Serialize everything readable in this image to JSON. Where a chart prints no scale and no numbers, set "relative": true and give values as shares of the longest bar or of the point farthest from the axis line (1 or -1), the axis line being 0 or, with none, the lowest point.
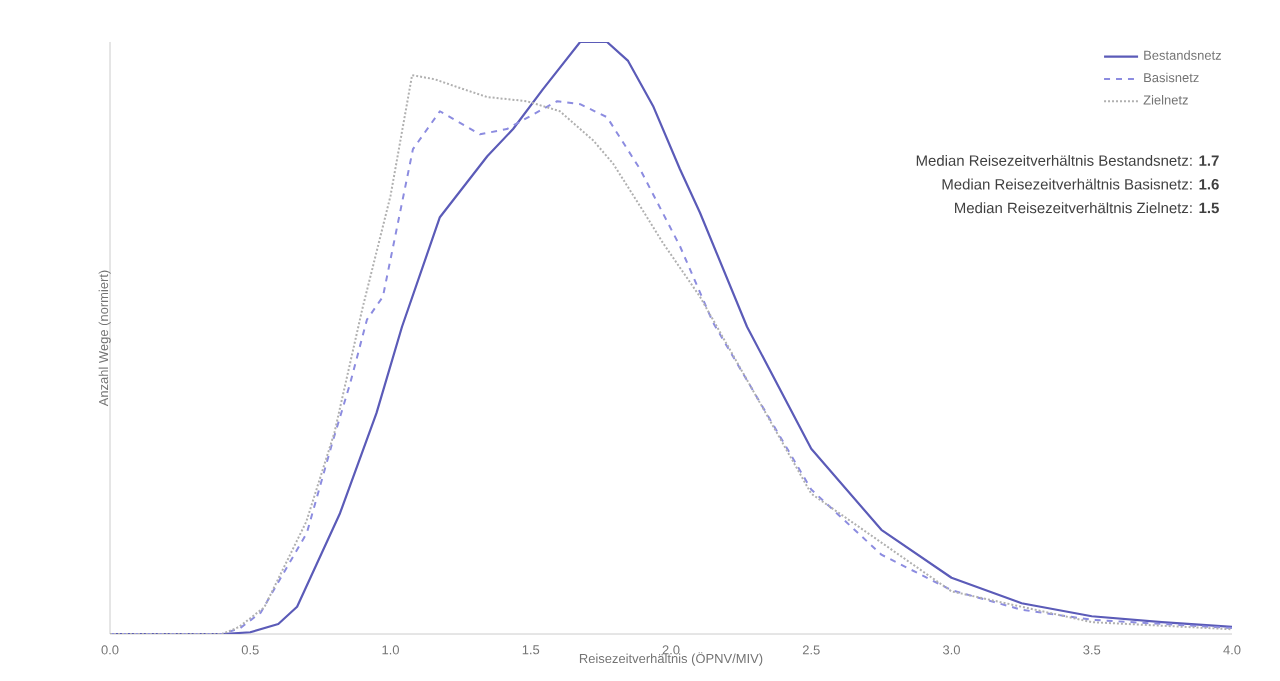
{
  "chart_data": {
    "type": "line",
    "relative": true,
    "xlabel": "Reisezeitverhältnis (ÖPNV/MIV)",
    "ylabel": "Anzahl Wege (normiert)",
    "xlim": [
      0,
      4
    ],
    "xticks": [
      {
        "value": 0,
        "label": "0.0"
      },
      {
        "value": 0.5,
        "label": "0.5"
      },
      {
        "value": 1,
        "label": "1.0"
      },
      {
        "value": 1.5,
        "label": "1.5"
      },
      {
        "value": 2,
        "label": "2.0"
      },
      {
        "value": 2.5,
        "label": "2.5"
      },
      {
        "value": 3,
        "label": "3.0"
      },
      {
        "value": 3.5,
        "label": "3.5"
      },
      {
        "value": 4,
        "label": "4.0"
      }
    ],
    "legend": "top right",
    "grid": false,
    "marker": "none",
    "series": [
      {
        "name": "Bestandsnetz",
        "color": "#5b5bb8",
        "line_style": "solid",
        "x": [
          0,
          0.4,
          0.5,
          0.6,
          0.667,
          0.82,
          0.95,
          1.041,
          1.176,
          1.345,
          1.437,
          1.543,
          1.676,
          1.772,
          1.847,
          1.936,
          2.032,
          2.103,
          2.271,
          2.5,
          2.75,
          3.0,
          3.25,
          3.5,
          3.75,
          4.0
        ],
        "values": [
          0,
          0,
          0.003,
          0.017,
          0.046,
          0.204,
          0.373,
          0.519,
          0.704,
          0.807,
          0.853,
          0.92,
          1,
          1,
          0.968,
          0.892,
          0.785,
          0.712,
          0.519,
          0.313,
          0.176,
          0.095,
          0.052,
          0.03,
          0.02,
          0.012
        ]
      },
      {
        "name": "Basisnetz",
        "color": "#8c8ce0",
        "line_style": "dashed",
        "x": [
          0,
          0.4,
          0.464,
          0.537,
          0.702,
          0.795,
          0.856,
          0.916,
          0.973,
          1.08,
          1.176,
          1.319,
          1.415,
          1.594,
          1.676,
          1.772,
          1.89,
          2.032,
          2.15,
          2.5,
          2.75,
          3.0,
          3.25,
          3.5,
          4.0
        ],
        "values": [
          0,
          0,
          0.01,
          0.036,
          0.171,
          0.327,
          0.423,
          0.531,
          0.57,
          0.819,
          0.883,
          0.844,
          0.853,
          0.9,
          0.895,
          0.873,
          0.785,
          0.655,
          0.526,
          0.244,
          0.134,
          0.074,
          0.041,
          0.024,
          0.01
        ]
      },
      {
        "name": "Zielnetz",
        "color": "#b0b0b0",
        "line_style": "dotted",
        "x": [
          0,
          0.4,
          0.46,
          0.55,
          0.7,
          0.8,
          0.9,
          1.0,
          1.077,
          1.158,
          1.237,
          1.345,
          1.486,
          1.604,
          1.722,
          1.793,
          1.9,
          1.972,
          2.103,
          2.5,
          3.0,
          3.5,
          4.0
        ],
        "values": [
          0,
          0,
          0.012,
          0.045,
          0.19,
          0.34,
          0.55,
          0.74,
          0.944,
          0.937,
          0.924,
          0.907,
          0.9,
          0.883,
          0.834,
          0.795,
          0.715,
          0.66,
          0.57,
          0.237,
          0.072,
          0.02,
          0.008
        ]
      }
    ],
    "annotations": [
      "Median Reisezeitverhältnis Bestandsnetz: **1.7**",
      "Median Reisezeitverhältnis Basisnetz: **1.6**",
      "Median Reisezeitverhältnis Zielnetz: **1.5**"
    ]
  }
}
